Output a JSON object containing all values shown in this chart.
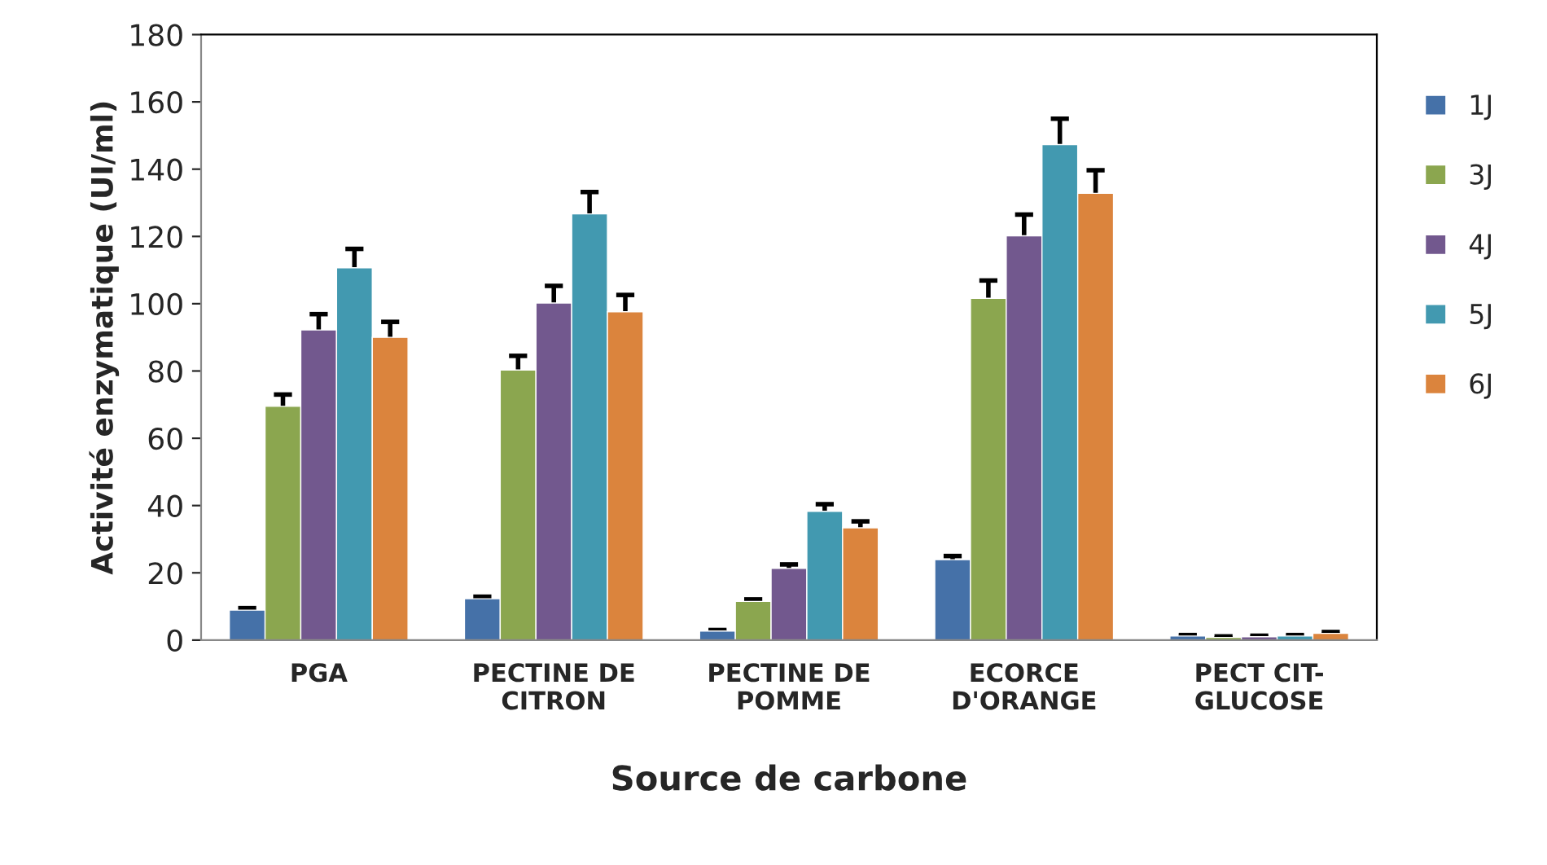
{
  "chart_data": {
    "type": "bar",
    "xlabel": "Source de carbone",
    "ylabel": "Activité enzymatique (UI/ml)",
    "categories": [
      "PGA",
      "PECTINE DE\nCITRON",
      "PECTINE DE\nPOMME",
      "ECORCE\nD'ORANGE",
      "PECT CIT-\nGLUCOSE"
    ],
    "series": [
      {
        "name": "1J",
        "color": "#4571a8",
        "values": [
          8.9,
          12.3,
          2.7,
          23.9,
          1.2
        ],
        "errors": [
          0.6,
          0.6,
          0.3,
          1.1,
          0.3
        ]
      },
      {
        "name": "3J",
        "color": "#8ba64f",
        "values": [
          69.5,
          80.3,
          11.5,
          101.6,
          0.8
        ],
        "errors": [
          3.5,
          4.2,
          0.6,
          5.3,
          0.3
        ]
      },
      {
        "name": "4J",
        "color": "#72588e",
        "values": [
          92.2,
          100.2,
          21.3,
          120.2,
          1.0
        ],
        "errors": [
          4.7,
          5.1,
          1.2,
          6.3,
          0.3
        ]
      },
      {
        "name": "5J",
        "color": "#4299b0",
        "values": [
          110.7,
          126.7,
          38.3,
          147.3,
          1.2
        ],
        "errors": [
          5.6,
          6.5,
          2.1,
          7.7,
          0.3
        ]
      },
      {
        "name": "6J",
        "color": "#db843d",
        "values": [
          90.0,
          97.6,
          33.4,
          132.8,
          2.0
        ],
        "errors": [
          4.6,
          5.0,
          1.9,
          6.9,
          0.4
        ]
      }
    ],
    "ylim": [
      0,
      180
    ],
    "yticks": [
      0,
      20,
      40,
      60,
      80,
      100,
      120,
      140,
      160,
      180
    ],
    "grid": false,
    "legend": "right"
  }
}
